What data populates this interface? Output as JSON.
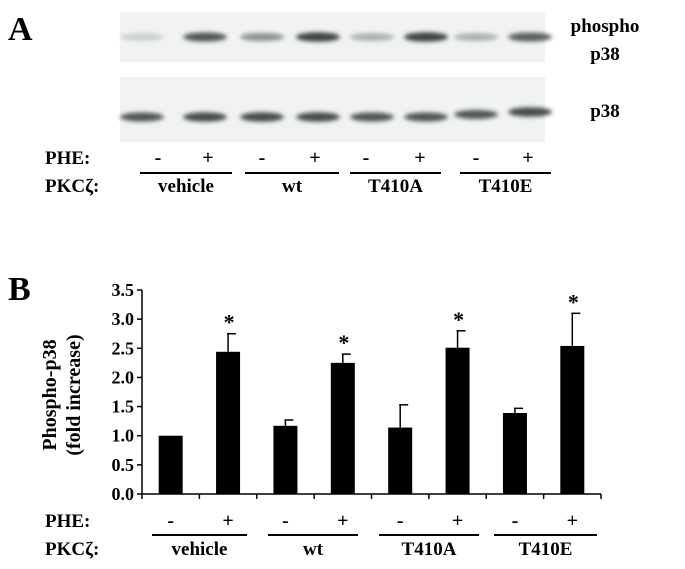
{
  "panel_a": {
    "label": "A",
    "blots": [
      {
        "label_lines": [
          "phospho",
          "p38"
        ],
        "band_intensity": [
          0.15,
          0.75,
          0.45,
          0.85,
          0.3,
          0.85,
          0.3,
          0.7
        ]
      },
      {
        "label_lines": [
          "p38"
        ],
        "band_intensity": [
          0.75,
          0.8,
          0.8,
          0.8,
          0.75,
          0.75,
          0.75,
          0.8
        ]
      }
    ],
    "phe_label": "PHE:",
    "pkc_label": "PKCζ:",
    "phe_signs": [
      "-",
      "+",
      "-",
      "+",
      "-",
      "+",
      "-",
      "+"
    ],
    "groups": [
      "vehicle",
      "wt",
      "T410A",
      "T410E"
    ]
  },
  "chart_data": {
    "type": "bar",
    "panel_label": "B",
    "ylabel_lines": [
      "Phospho-p38",
      "(fold increase)"
    ],
    "ylim": [
      0,
      3.5
    ],
    "yticks": [
      "0.0",
      "0.5",
      "1.0",
      "1.5",
      "2.0",
      "2.5",
      "3.0",
      "3.5"
    ],
    "phe_label": "PHE:",
    "pkc_label": "PKCζ:",
    "phe_signs": [
      "-",
      "+",
      "-",
      "+",
      "-",
      "+",
      "-",
      "+"
    ],
    "groups": [
      "vehicle",
      "wt",
      "T410A",
      "T410E"
    ],
    "values": [
      1.0,
      2.44,
      1.17,
      2.25,
      1.14,
      2.51,
      1.39,
      2.54
    ],
    "error_top": [
      1.0,
      2.75,
      1.27,
      2.4,
      1.53,
      2.8,
      1.47,
      3.1
    ],
    "significance": [
      "",
      "*",
      "",
      "*",
      "",
      "*",
      "",
      "*"
    ],
    "bar_color": "#000000",
    "grid": false
  }
}
